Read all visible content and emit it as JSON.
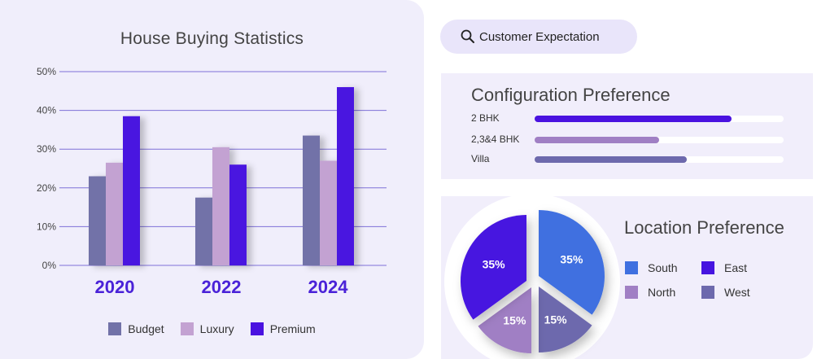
{
  "left": {
    "title": "House Buying Statistics"
  },
  "search": {
    "label": "Customer Expectation",
    "icon": "search-icon"
  },
  "config": {
    "title": "Configuration Preference",
    "items": [
      {
        "label": "2 BHK",
        "value": 0.79,
        "color": "#4a12e0"
      },
      {
        "label": "2,3&4 BHK",
        "value": 0.5,
        "color": "#a07fc4"
      },
      {
        "label": "Villa",
        "value": 0.61,
        "color": "#6d69ad"
      }
    ]
  },
  "location": {
    "title": "Location Preference",
    "legend": [
      {
        "name": "South",
        "color": "#3f70e0"
      },
      {
        "name": "East",
        "color": "#4614e0"
      },
      {
        "name": "North",
        "color": "#a07fc4"
      },
      {
        "name": "West",
        "color": "#6d69ad"
      }
    ]
  },
  "chart_data": [
    {
      "type": "bar",
      "title": "House Buying Statistics",
      "categories": [
        "2020",
        "2022",
        "2024"
      ],
      "series": [
        {
          "name": "Budget",
          "values": [
            23,
            17.5,
            33.5
          ],
          "color": "#7272a8"
        },
        {
          "name": "Luxury",
          "values": [
            26.5,
            30.5,
            27
          ],
          "color": "#c3a2d2"
        },
        {
          "name": "Premium",
          "values": [
            38.5,
            26,
            46
          ],
          "color": "#4a12e0"
        }
      ],
      "yticks": [
        "0%",
        "10%",
        "20%",
        "30%",
        "40%",
        "50%"
      ],
      "ylim": [
        0,
        50
      ],
      "grid": true,
      "legend_position": "bottom"
    },
    {
      "type": "pie",
      "title": "Location Preference",
      "slices": [
        {
          "name": "South",
          "value": 35,
          "label": "35%",
          "color": "#3f70e0"
        },
        {
          "name": "West",
          "value": 15,
          "label": "15%",
          "color": "#6d69ad"
        },
        {
          "name": "North",
          "value": 15,
          "label": "15%",
          "color": "#a07fc4"
        },
        {
          "name": "East",
          "value": 35,
          "label": "35%",
          "color": "#4614e0"
        }
      ]
    }
  ]
}
